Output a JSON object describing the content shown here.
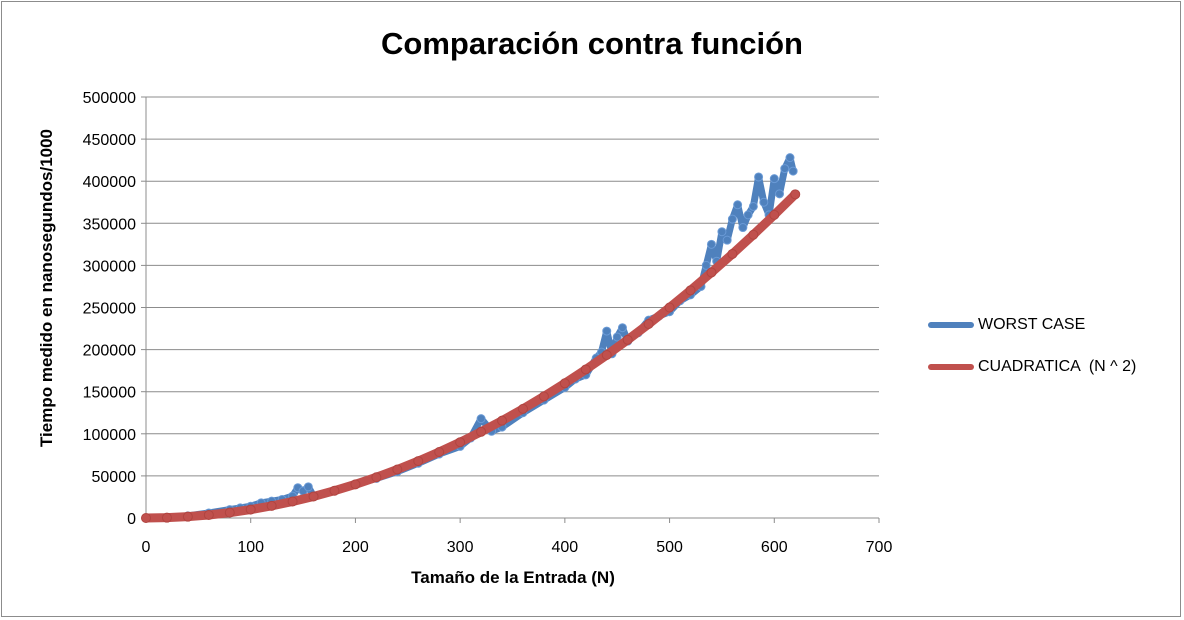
{
  "chart_data": {
    "type": "scatter",
    "title": "Comparación contra función",
    "xlabel": "Tamaño  de la Entrada (N)",
    "ylabel": "Tiempo medido en nanosegundos/1000",
    "xlim": [
      0,
      700
    ],
    "ylim": [
      0,
      500000
    ],
    "x_ticks": [
      "0",
      "100",
      "200",
      "300",
      "400",
      "500",
      "600",
      "700"
    ],
    "y_ticks": [
      "0",
      "50000",
      "100000",
      "150000",
      "200000",
      "250000",
      "300000",
      "350000",
      "400000",
      "450000",
      "500000"
    ],
    "grid": "horizontal",
    "legend_position": "right",
    "series": [
      {
        "name": "WORST CASE",
        "color": "#4f81bd",
        "x": [
          0,
          20,
          40,
          60,
          80,
          90,
          100,
          110,
          120,
          130,
          140,
          145,
          150,
          155,
          160,
          180,
          200,
          220,
          240,
          260,
          280,
          300,
          310,
          320,
          330,
          340,
          360,
          380,
          400,
          410,
          420,
          430,
          435,
          440,
          445,
          450,
          455,
          460,
          470,
          480,
          490,
          500,
          510,
          520,
          530,
          535,
          540,
          545,
          550,
          555,
          560,
          565,
          570,
          575,
          580,
          585,
          590,
          595,
          600,
          605,
          610,
          615,
          618
        ],
        "y": [
          0,
          500,
          2500,
          6000,
          10000,
          12000,
          14000,
          18000,
          20000,
          22000,
          26000,
          36000,
          32000,
          37000,
          26000,
          32000,
          40000,
          47000,
          55000,
          65000,
          76000,
          85000,
          95000,
          118000,
          103000,
          108000,
          125000,
          140000,
          155000,
          165000,
          170000,
          190000,
          197000,
          222000,
          195000,
          215000,
          226000,
          210000,
          220000,
          235000,
          240000,
          245000,
          258000,
          265000,
          275000,
          300000,
          325000,
          305000,
          340000,
          330000,
          355000,
          372000,
          345000,
          360000,
          370000,
          405000,
          375000,
          360000,
          403000,
          385000,
          415000,
          428000,
          412000
        ]
      },
      {
        "name": "CUADRATICA  (N ^ 2)",
        "color": "#c0504d",
        "x": [
          0,
          20,
          40,
          60,
          80,
          100,
          120,
          140,
          160,
          180,
          200,
          220,
          240,
          260,
          280,
          300,
          320,
          340,
          360,
          380,
          400,
          420,
          440,
          460,
          480,
          500,
          520,
          540,
          560,
          580,
          600,
          620
        ],
        "y": [
          0,
          400,
          1600,
          3600,
          6400,
          10000,
          14400,
          19600,
          25600,
          32400,
          40000,
          48400,
          57600,
          67600,
          78400,
          90000,
          102400,
          115600,
          129600,
          144400,
          160000,
          176400,
          193600,
          211600,
          230400,
          250000,
          270400,
          291600,
          313600,
          336400,
          360000,
          384400
        ]
      }
    ]
  }
}
